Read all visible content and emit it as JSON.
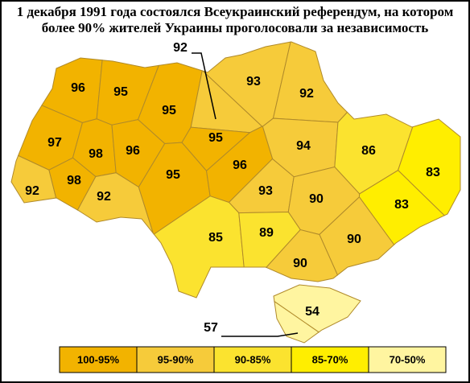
{
  "title_lines": [
    "1 декабря 1991 года состоялся Всеукраинский референдум, на котором",
    "более 90% жителей Украины проголосовали за независимость"
  ],
  "regions": [
    {
      "value": 96,
      "color": "#f2b300"
    },
    {
      "value": 95,
      "color": "#f2b300"
    },
    {
      "value": 95,
      "color": "#f2b300"
    },
    {
      "value": 92,
      "color": "#f6cb3a"
    },
    {
      "value": 93,
      "color": "#f6cb3a"
    },
    {
      "value": 92,
      "color": "#f6cb3a"
    },
    {
      "value": 97,
      "color": "#f2b300"
    },
    {
      "value": 98,
      "color": "#f2b300"
    },
    {
      "value": 96,
      "color": "#f2b300"
    },
    {
      "value": 95,
      "color": "#f2b300"
    },
    {
      "value": 94,
      "color": "#f6cb3a"
    },
    {
      "value": 86,
      "color": "#fbe32f"
    },
    {
      "value": 83,
      "color": "#ffee00"
    },
    {
      "value": 92,
      "color": "#f6cb3a"
    },
    {
      "value": 98,
      "color": "#f2b300"
    },
    {
      "value": 92,
      "color": "#f6cb3a"
    },
    {
      "value": 95,
      "color": "#f2b300"
    },
    {
      "value": 96,
      "color": "#f2b300"
    },
    {
      "value": 93,
      "color": "#f6cb3a"
    },
    {
      "value": 90,
      "color": "#f6cb3a"
    },
    {
      "value": 83,
      "color": "#ffee00"
    },
    {
      "value": 85,
      "color": "#fbe32f"
    },
    {
      "value": 89,
      "color": "#fbe32f"
    },
    {
      "value": 90,
      "color": "#f6cb3a"
    },
    {
      "value": 90,
      "color": "#f6cb3a"
    },
    {
      "value": 54,
      "color": "#fff5a0"
    },
    {
      "value": 57,
      "color": "#fff5a0"
    }
  ],
  "legend": [
    {
      "label": "100-95%",
      "color": "#f2b300"
    },
    {
      "label": "95-90%",
      "color": "#f6cb3a"
    },
    {
      "label": "90-85%",
      "color": "#fbe32f"
    },
    {
      "label": "85-70%",
      "color": "#ffee00"
    },
    {
      "label": "70-50%",
      "color": "#fff5a0"
    }
  ]
}
